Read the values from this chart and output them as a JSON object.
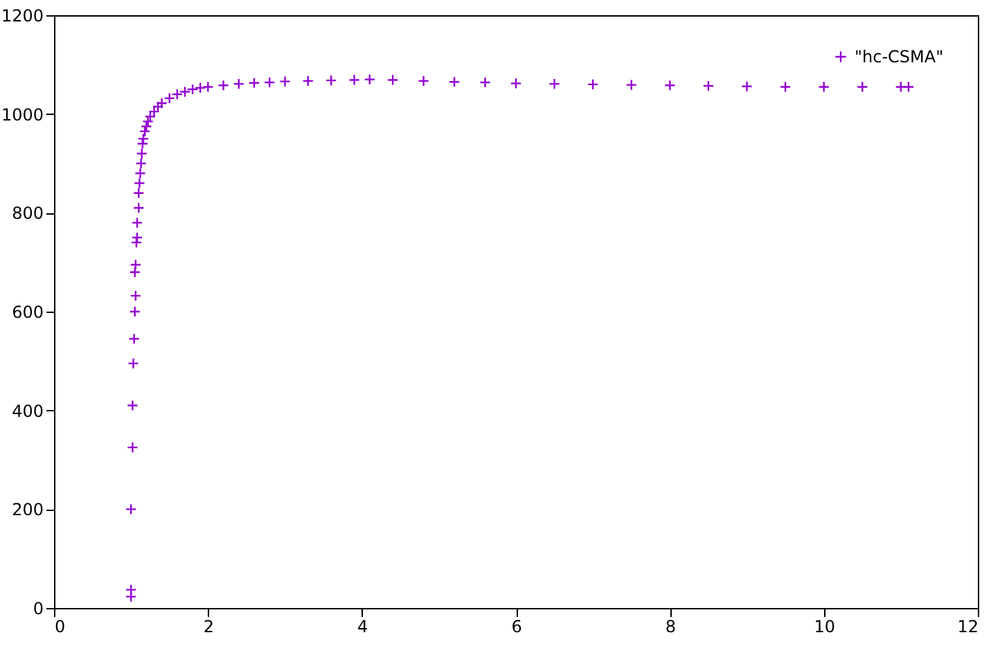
{
  "chart_data": {
    "type": "scatter",
    "marker": "cross",
    "legend": "top right",
    "grid": false,
    "xlim": [
      0,
      12
    ],
    "xticks": [
      0,
      2,
      4,
      6,
      8,
      10,
      12
    ],
    "ylim": [
      0,
      1200
    ],
    "yticks": [
      0,
      200,
      400,
      600,
      800,
      1000,
      1200
    ],
    "series": [
      {
        "name": "\"hc-CSMA\"",
        "color": "#9400d3",
        "x": [
          1.0,
          1.0,
          1.0,
          1.02,
          1.02,
          1.03,
          1.04,
          1.05,
          1.06,
          1.05,
          1.06,
          1.07,
          1.08,
          1.08,
          1.1,
          1.1,
          1.11,
          1.12,
          1.13,
          1.14,
          1.15,
          1.16,
          1.18,
          1.2,
          1.22,
          1.25,
          1.3,
          1.35,
          1.4,
          1.5,
          1.6,
          1.7,
          1.8,
          1.9,
          2.0,
          2.2,
          2.4,
          2.6,
          2.8,
          3.0,
          3.3,
          3.6,
          3.9,
          4.1,
          4.4,
          4.8,
          5.2,
          5.6,
          6.0,
          6.5,
          7.0,
          7.5,
          8.0,
          8.5,
          9.0,
          9.5,
          10.0,
          10.5,
          11.0,
          11.1
        ],
        "values": [
          23,
          37,
          200,
          325,
          410,
          495,
          545,
          600,
          632,
          680,
          695,
          740,
          750,
          780,
          810,
          840,
          860,
          880,
          900,
          920,
          940,
          950,
          965,
          975,
          985,
          995,
          1005,
          1015,
          1022,
          1032,
          1040,
          1045,
          1050,
          1053,
          1055,
          1058,
          1061,
          1063,
          1064,
          1066,
          1067,
          1068,
          1069,
          1070,
          1069,
          1067,
          1065,
          1064,
          1062,
          1061,
          1060,
          1059,
          1058,
          1057,
          1056,
          1055,
          1055,
          1055,
          1055,
          1055
        ]
      }
    ]
  }
}
